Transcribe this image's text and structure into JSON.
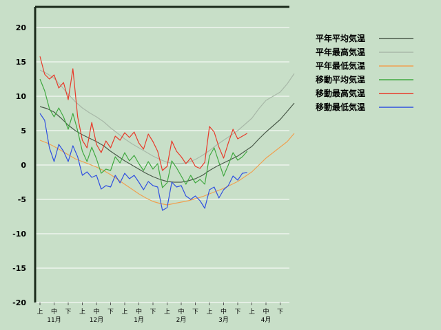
{
  "chart_data": {
    "type": "line",
    "title": "",
    "xlabel": "",
    "ylabel": "",
    "ylim": [
      -20,
      23
    ],
    "yticks": [
      20,
      15,
      10,
      5,
      0,
      -5,
      -10,
      -15,
      -20
    ],
    "x_dekads": [
      "上",
      "中",
      "下",
      "上",
      "中",
      "下",
      "上",
      "中",
      "下",
      "上",
      "中",
      "下",
      "上",
      "中",
      "下",
      "上",
      "中",
      "下"
    ],
    "x_months": [
      "11月",
      "12月",
      "1月",
      "2月",
      "3月",
      "4月"
    ],
    "legend_position": "right",
    "series": [
      {
        "name": "平年平均気温",
        "color": "#4a5a4a",
        "points": [
          [
            0,
            8.5
          ],
          [
            0.5,
            8.2
          ],
          [
            1,
            7.7
          ],
          [
            1.5,
            6.8
          ],
          [
            2,
            5.8
          ],
          [
            2.5,
            5.0
          ],
          [
            3,
            4.4
          ],
          [
            3.5,
            3.9
          ],
          [
            4,
            3.4
          ],
          [
            4.5,
            2.8
          ],
          [
            5,
            2.0
          ],
          [
            5.5,
            1.3
          ],
          [
            6,
            0.6
          ],
          [
            6.5,
            0
          ],
          [
            7,
            -0.6
          ],
          [
            7.5,
            -1.2
          ],
          [
            8,
            -1.7
          ],
          [
            8.5,
            -2.1
          ],
          [
            9,
            -2.4
          ],
          [
            9.5,
            -2.5
          ],
          [
            10,
            -2.5
          ],
          [
            10.5,
            -2.3
          ],
          [
            11,
            -2.0
          ],
          [
            11.5,
            -1.5
          ],
          [
            12,
            -0.8
          ],
          [
            12.5,
            -0.2
          ],
          [
            13,
            0.3
          ],
          [
            13.5,
            0.8
          ],
          [
            14,
            1.3
          ],
          [
            14.5,
            2.0
          ],
          [
            15,
            2.7
          ],
          [
            15.5,
            3.8
          ],
          [
            16,
            4.8
          ],
          [
            16.5,
            5.7
          ],
          [
            17,
            6.6
          ],
          [
            17.5,
            7.8
          ],
          [
            18,
            9.0
          ]
        ]
      },
      {
        "name": "平年最高気温",
        "color": "#a8b8a8",
        "points": [
          [
            0,
            13.8
          ],
          [
            0.5,
            13.3
          ],
          [
            1,
            12.6
          ],
          [
            1.5,
            11.5
          ],
          [
            2,
            10.3
          ],
          [
            2.5,
            9.2
          ],
          [
            3,
            8.3
          ],
          [
            3.5,
            7.6
          ],
          [
            4,
            7.0
          ],
          [
            4.5,
            6.3
          ],
          [
            5,
            5.4
          ],
          [
            5.5,
            4.6
          ],
          [
            6,
            3.8
          ],
          [
            6.5,
            3.1
          ],
          [
            7,
            2.5
          ],
          [
            7.5,
            1.9
          ],
          [
            8,
            1.3
          ],
          [
            8.5,
            0.8
          ],
          [
            9,
            0.4
          ],
          [
            9.5,
            0.2
          ],
          [
            10,
            0.2
          ],
          [
            10.5,
            0.4
          ],
          [
            11,
            0.8
          ],
          [
            11.5,
            1.4
          ],
          [
            12,
            2.1
          ],
          [
            12.5,
            2.9
          ],
          [
            13,
            3.6
          ],
          [
            13.5,
            4.3
          ],
          [
            14,
            5.0
          ],
          [
            14.5,
            5.9
          ],
          [
            15,
            6.8
          ],
          [
            15.5,
            8.2
          ],
          [
            16,
            9.4
          ],
          [
            16.5,
            10.0
          ],
          [
            17,
            10.6
          ],
          [
            17.5,
            11.8
          ],
          [
            18,
            13.3
          ]
        ]
      },
      {
        "name": "平年最低気温",
        "color": "#f0a050",
        "points": [
          [
            0,
            3.6
          ],
          [
            0.5,
            3.2
          ],
          [
            1,
            2.7
          ],
          [
            1.5,
            2.1
          ],
          [
            2,
            1.5
          ],
          [
            2.5,
            0.9
          ],
          [
            3,
            0.5
          ],
          [
            3.5,
            0.1
          ],
          [
            4,
            -0.3
          ],
          [
            4.5,
            -0.8
          ],
          [
            5,
            -1.4
          ],
          [
            5.5,
            -2.1
          ],
          [
            6,
            -2.8
          ],
          [
            6.5,
            -3.5
          ],
          [
            7,
            -4.2
          ],
          [
            7.5,
            -4.8
          ],
          [
            8,
            -5.3
          ],
          [
            8.5,
            -5.6
          ],
          [
            9,
            -5.8
          ],
          [
            9.5,
            -5.6
          ],
          [
            10,
            -5.4
          ],
          [
            10.5,
            -5.2
          ],
          [
            11,
            -4.9
          ],
          [
            11.5,
            -4.6
          ],
          [
            12,
            -4.2
          ],
          [
            12.5,
            -3.8
          ],
          [
            13,
            -3.4
          ],
          [
            13.5,
            -2.9
          ],
          [
            14,
            -2.4
          ],
          [
            14.5,
            -1.7
          ],
          [
            15,
            -1.0
          ],
          [
            15.5,
            0
          ],
          [
            16,
            1.0
          ],
          [
            16.5,
            1.8
          ],
          [
            17,
            2.6
          ],
          [
            17.5,
            3.4
          ],
          [
            18,
            4.6
          ]
        ]
      },
      {
        "name": "移動平均気温",
        "color": "#40a840",
        "points": [
          [
            0,
            12.5
          ],
          [
            0.33,
            10.8
          ],
          [
            0.67,
            8.2
          ],
          [
            1,
            7.0
          ],
          [
            1.33,
            8.3
          ],
          [
            1.67,
            7.0
          ],
          [
            2,
            5.2
          ],
          [
            2.33,
            7.5
          ],
          [
            2.67,
            5.0
          ],
          [
            3,
            2.0
          ],
          [
            3.33,
            0.5
          ],
          [
            3.67,
            2.6
          ],
          [
            4,
            0.9
          ],
          [
            4.33,
            -1.2
          ],
          [
            4.67,
            -0.6
          ],
          [
            5,
            -0.8
          ],
          [
            5.33,
            1.2
          ],
          [
            5.67,
            0.3
          ],
          [
            6,
            1.8
          ],
          [
            6.33,
            0.6
          ],
          [
            6.67,
            1.4
          ],
          [
            7,
            0.2
          ],
          [
            7.33,
            -0.8
          ],
          [
            7.67,
            0.5
          ],
          [
            8,
            -0.6
          ],
          [
            8.33,
            0.2
          ],
          [
            8.67,
            -3.3
          ],
          [
            9,
            -2.6
          ],
          [
            9.33,
            0.6
          ],
          [
            9.67,
            -0.4
          ],
          [
            10,
            -1.6
          ],
          [
            10.33,
            -2.8
          ],
          [
            10.67,
            -1.5
          ],
          [
            11,
            -2.6
          ],
          [
            11.33,
            -2.1
          ],
          [
            11.67,
            -2.8
          ],
          [
            12,
            1.3
          ],
          [
            12.33,
            2.5
          ],
          [
            12.67,
            0.4
          ],
          [
            13,
            -1.6
          ],
          [
            13.33,
            0
          ],
          [
            13.67,
            1.8
          ],
          [
            14,
            0.7
          ],
          [
            14.33,
            1.2
          ],
          [
            14.67,
            2.0
          ]
        ]
      },
      {
        "name": "移動最高気温",
        "color": "#e83a2a",
        "points": [
          [
            0,
            15.8
          ],
          [
            0.33,
            13.2
          ],
          [
            0.67,
            12.5
          ],
          [
            1,
            13.1
          ],
          [
            1.33,
            11.2
          ],
          [
            1.67,
            12.0
          ],
          [
            2,
            9.5
          ],
          [
            2.33,
            14.0
          ],
          [
            2.67,
            7.0
          ],
          [
            3,
            3.6
          ],
          [
            3.33,
            2.5
          ],
          [
            3.67,
            6.2
          ],
          [
            4,
            3.0
          ],
          [
            4.33,
            1.8
          ],
          [
            4.67,
            3.5
          ],
          [
            5,
            2.5
          ],
          [
            5.33,
            4.2
          ],
          [
            5.67,
            3.6
          ],
          [
            6,
            4.7
          ],
          [
            6.33,
            4.0
          ],
          [
            6.67,
            4.8
          ],
          [
            7,
            3.2
          ],
          [
            7.33,
            2.3
          ],
          [
            7.67,
            4.5
          ],
          [
            8,
            3.4
          ],
          [
            8.33,
            2.0
          ],
          [
            8.67,
            -0.8
          ],
          [
            9,
            -0.2
          ],
          [
            9.33,
            3.5
          ],
          [
            9.67,
            2.0
          ],
          [
            10,
            1.2
          ],
          [
            10.33,
            0.2
          ],
          [
            10.67,
            1.0
          ],
          [
            11,
            -0.2
          ],
          [
            11.33,
            -0.5
          ],
          [
            11.67,
            0.4
          ],
          [
            12,
            5.6
          ],
          [
            12.33,
            4.8
          ],
          [
            12.67,
            2.6
          ],
          [
            13,
            1.0
          ],
          [
            13.33,
            3.2
          ],
          [
            13.67,
            5.2
          ],
          [
            14,
            3.8
          ],
          [
            14.33,
            4.2
          ],
          [
            14.67,
            4.6
          ]
        ]
      },
      {
        "name": "移動最低気温",
        "color": "#3050e0",
        "points": [
          [
            0,
            7.5
          ],
          [
            0.33,
            6.5
          ],
          [
            0.67,
            2.5
          ],
          [
            1,
            0.5
          ],
          [
            1.33,
            3.0
          ],
          [
            1.67,
            2.0
          ],
          [
            2,
            0.5
          ],
          [
            2.33,
            2.8
          ],
          [
            2.67,
            1.2
          ],
          [
            3,
            -1.5
          ],
          [
            3.33,
            -1.0
          ],
          [
            3.67,
            -1.8
          ],
          [
            4,
            -1.5
          ],
          [
            4.33,
            -3.5
          ],
          [
            4.67,
            -3.0
          ],
          [
            5,
            -3.2
          ],
          [
            5.33,
            -1.5
          ],
          [
            5.67,
            -2.6
          ],
          [
            6,
            -1.2
          ],
          [
            6.33,
            -2.0
          ],
          [
            6.67,
            -1.5
          ],
          [
            7,
            -2.5
          ],
          [
            7.33,
            -3.6
          ],
          [
            7.67,
            -2.4
          ],
          [
            8,
            -3.0
          ],
          [
            8.33,
            -3.2
          ],
          [
            8.67,
            -6.6
          ],
          [
            9,
            -6.2
          ],
          [
            9.33,
            -2.5
          ],
          [
            9.67,
            -3.2
          ],
          [
            10,
            -3.0
          ],
          [
            10.33,
            -4.5
          ],
          [
            10.67,
            -5.0
          ],
          [
            11,
            -4.5
          ],
          [
            11.33,
            -5.2
          ],
          [
            11.67,
            -6.3
          ],
          [
            12,
            -3.6
          ],
          [
            12.33,
            -3.2
          ],
          [
            12.67,
            -4.8
          ],
          [
            13,
            -3.6
          ],
          [
            13.33,
            -3.0
          ],
          [
            13.67,
            -1.6
          ],
          [
            14,
            -2.2
          ],
          [
            14.33,
            -1.2
          ],
          [
            14.67,
            -1.1
          ]
        ]
      }
    ]
  }
}
